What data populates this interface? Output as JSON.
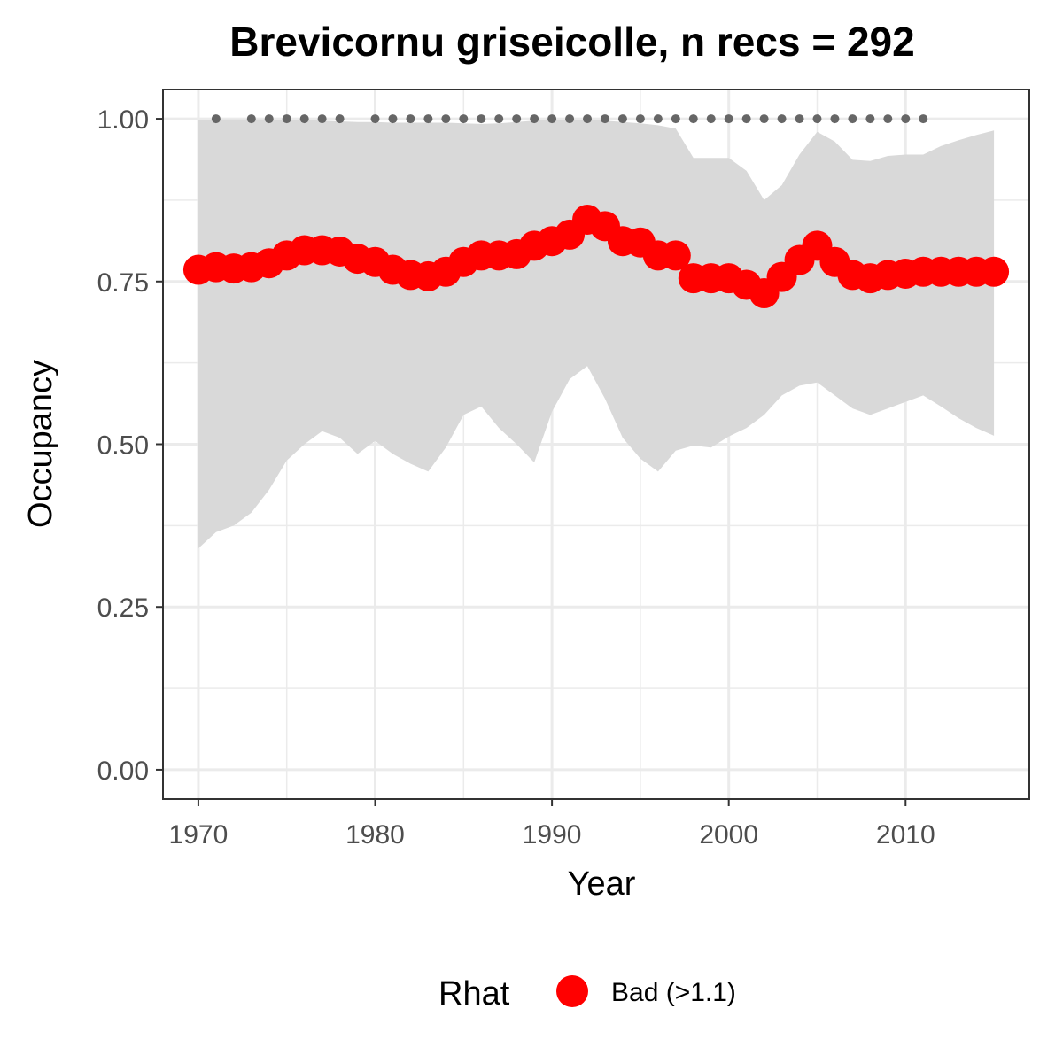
{
  "chart_data": {
    "type": "line",
    "title": "Brevicornu griseicolle, n recs = 292",
    "xlabel": "Year",
    "ylabel": "Occupancy",
    "xlim": [
      1968,
      2017
    ],
    "ylim": [
      -0.045,
      1.045
    ],
    "x_ticks": [
      1970,
      1980,
      1990,
      2000,
      2010
    ],
    "x_tick_labels": [
      "1970",
      "1980",
      "1990",
      "2000",
      "2010"
    ],
    "y_ticks": [
      0,
      0.25,
      0.5,
      0.75,
      1.0
    ],
    "y_tick_labels": [
      "0.00",
      "0.25",
      "0.50",
      "0.75",
      "1.00"
    ],
    "grid": true,
    "series": [
      {
        "x": [
          1970,
          1971,
          1972,
          1973,
          1974,
          1975,
          1976,
          1977,
          1978,
          1979,
          1980,
          1981,
          1982,
          1983,
          1984,
          1985,
          1986,
          1987,
          1988,
          1989,
          1990,
          1991,
          1992,
          1993,
          1994,
          1995,
          1996,
          1997,
          1998,
          1999,
          2000,
          2001,
          2002,
          2003,
          2004,
          2005,
          2006,
          2007,
          2008,
          2009,
          2010,
          2011,
          2012,
          2013,
          2014,
          2015
        ],
        "values": [
          0.768,
          0.772,
          0.77,
          0.772,
          0.778,
          0.79,
          0.798,
          0.798,
          0.796,
          0.785,
          0.78,
          0.768,
          0.76,
          0.758,
          0.765,
          0.78,
          0.79,
          0.79,
          0.792,
          0.805,
          0.812,
          0.822,
          0.845,
          0.835,
          0.812,
          0.81,
          0.79,
          0.79,
          0.755,
          0.755,
          0.755,
          0.745,
          0.732,
          0.757,
          0.783,
          0.805,
          0.78,
          0.76,
          0.755,
          0.76,
          0.762,
          0.765,
          0.765,
          0.765,
          0.765,
          0.765
        ],
        "lower": [
          0.34,
          0.365,
          0.375,
          0.395,
          0.43,
          0.475,
          0.5,
          0.52,
          0.51,
          0.485,
          0.505,
          0.485,
          0.47,
          0.458,
          0.495,
          0.545,
          0.558,
          0.525,
          0.5,
          0.472,
          0.55,
          0.6,
          0.62,
          0.57,
          0.51,
          0.478,
          0.458,
          0.49,
          0.498,
          0.495,
          0.512,
          0.525,
          0.545,
          0.575,
          0.59,
          0.595,
          0.575,
          0.555,
          0.545,
          0.555,
          0.565,
          0.575,
          0.558,
          0.54,
          0.525,
          0.513
        ],
        "upper": [
          0.998,
          0.999,
          0.999,
          0.999,
          0.999,
          0.998,
          0.998,
          0.997,
          0.996,
          0.995,
          0.995,
          0.994,
          0.994,
          0.994,
          0.994,
          0.993,
          0.992,
          0.993,
          0.995,
          0.997,
          0.998,
          0.998,
          0.998,
          0.997,
          0.995,
          0.993,
          0.99,
          0.985,
          0.94,
          0.94,
          0.94,
          0.92,
          0.875,
          0.898,
          0.945,
          0.98,
          0.965,
          0.937,
          0.935,
          0.943,
          0.945,
          0.945,
          0.958,
          0.967,
          0.975,
          0.982
        ],
        "point_color": "#FF0000",
        "band_color": "#d9d9d9"
      }
    ],
    "top_dots": {
      "y": 1.0,
      "x": [
        1971,
        1973,
        1974,
        1975,
        1976,
        1977,
        1978,
        1980,
        1981,
        1982,
        1983,
        1984,
        1985,
        1986,
        1987,
        1988,
        1989,
        1990,
        1991,
        1992,
        1993,
        1994,
        1995,
        1996,
        1997,
        1998,
        1999,
        2000,
        2001,
        2002,
        2003,
        2004,
        2005,
        2006,
        2007,
        2008,
        2009,
        2010,
        2011
      ],
      "color": "#666666"
    },
    "legend": {
      "position": "bottom",
      "title": "Rhat",
      "entries": [
        {
          "label": "Bad (>1.1)",
          "color": "#FF0000"
        }
      ]
    }
  }
}
